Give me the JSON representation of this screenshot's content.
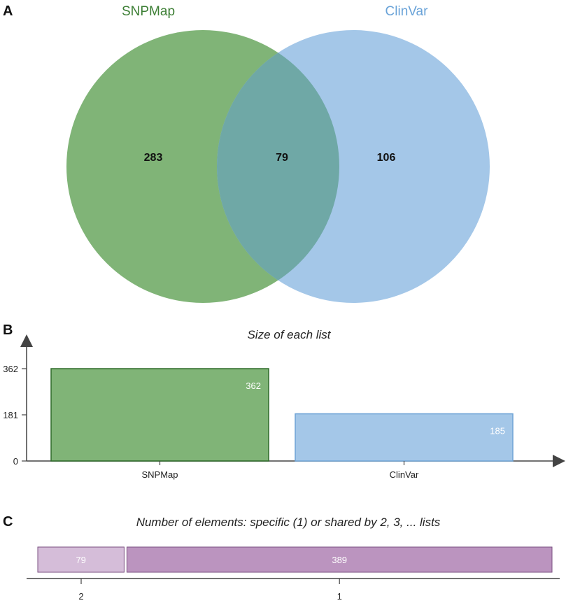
{
  "panels": {
    "a": "A",
    "b": "B",
    "c": "C"
  },
  "colors": {
    "snpmap_fill": "#6aa75f",
    "snpmap_stroke": "#2f6b2a",
    "snpmap_title": "#3d7f35",
    "clinvar_fill": "#a4c7e8",
    "clinvar_stroke": "#6ea3d6",
    "clinvar_title": "#6aa3d8",
    "overlap_fill": "#6fa8a6",
    "shared_light": "#d5bdd9",
    "shared_dark": "#bb94bf",
    "shared_stroke": "#7a4f80",
    "axis": "#444444"
  },
  "chart_data": [
    {
      "type": "venn",
      "sets": [
        "SNPMap",
        "ClinVar"
      ],
      "regions": {
        "SNPMap_only": "283",
        "both": "79",
        "ClinVar_only": "106"
      }
    },
    {
      "type": "bar",
      "title": "Size of each list",
      "categories": [
        "SNPMap",
        "ClinVar"
      ],
      "values": [
        362,
        185
      ],
      "value_labels": [
        "362",
        "185"
      ],
      "ylim": [
        0,
        362
      ],
      "yticks": [
        "0",
        "181",
        "362"
      ]
    },
    {
      "type": "bar",
      "orientation": "horizontal-stacked",
      "title": "Number of elements: specific (1) or shared by 2, 3, ... lists",
      "segments": [
        {
          "category": "2",
          "value": 79,
          "label": "79"
        },
        {
          "category": "1",
          "value": 389,
          "label": "389"
        }
      ]
    }
  ]
}
